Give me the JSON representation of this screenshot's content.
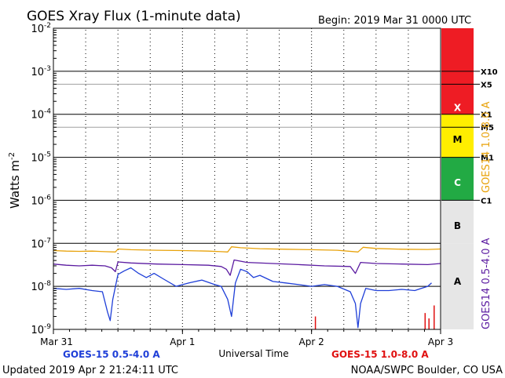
{
  "colors": {
    "background": "#ffffff",
    "axis": "#000000",
    "grid": "#a0a0a0",
    "goes15_short": "#1f3fd8",
    "goes14_short": "#5a1aa0",
    "goes14_long": "#e8a20a",
    "goes15_long": "#e01010",
    "legend_blue": "#1f3fd8",
    "legend_red": "#e01010",
    "label_goes14_long": "#e8a20a",
    "label_goes14_short": "#5a1aa0",
    "band_x": "#ee1c24",
    "band_m": "#ffee00",
    "band_c": "#22aa44",
    "band_low": "#e6e6e6"
  },
  "chart_data": {
    "type": "line",
    "title": "GOES Xray Flux (1-minute data)",
    "begin_label": "Begin:  2019 Mar 31  0000 UTC",
    "ylabel": "Watts m",
    "ylabel_sup": "-2",
    "xlabel": "Universal Time",
    "y_scale": "log",
    "ylim": [
      1e-09,
      0.01
    ],
    "xlim_days": [
      0,
      3
    ],
    "x_ticks": [
      {
        "label": "Mar 31",
        "day": 0
      },
      {
        "label": "Apr 1",
        "day": 1
      },
      {
        "label": "Apr 2",
        "day": 2
      },
      {
        "label": "Apr 3",
        "day": 3
      }
    ],
    "y_ticks": [
      {
        "base": "10",
        "exp": "-2",
        "value": 0.01
      },
      {
        "base": "10",
        "exp": "-3",
        "value": 0.001
      },
      {
        "base": "10",
        "exp": "-4",
        "value": 0.0001
      },
      {
        "base": "10",
        "exp": "-5",
        "value": 1e-05
      },
      {
        "base": "10",
        "exp": "-6",
        "value": 1e-06
      },
      {
        "base": "10",
        "exp": "-7",
        "value": 1e-07
      },
      {
        "base": "10",
        "exp": "-8",
        "value": 1e-08
      },
      {
        "base": "10",
        "exp": "-9",
        "value": 1e-09
      }
    ],
    "flare_levels": [
      {
        "label": "X10",
        "value": 0.001
      },
      {
        "label": "X5",
        "value": 0.0005
      },
      {
        "label": "X1",
        "value": 0.0001
      },
      {
        "label": "M5",
        "value": 5e-05
      },
      {
        "label": "M1",
        "value": 1e-05
      },
      {
        "label": "C1",
        "value": 1e-06
      }
    ],
    "class_bands": [
      {
        "letter": "X",
        "low": 0.0001,
        "high": 0.01,
        "color_key": "band_x"
      },
      {
        "letter": "M",
        "low": 1e-05,
        "high": 0.0001,
        "color_key": "band_m"
      },
      {
        "letter": "C",
        "low": 1e-06,
        "high": 1e-05,
        "color_key": "band_c"
      },
      {
        "letter": "B",
        "low": 1e-07,
        "high": 1e-06,
        "color_key": "band_low"
      },
      {
        "letter": "A",
        "low": 1e-09,
        "high": 1e-07,
        "color_key": "band_low"
      }
    ],
    "series": [
      {
        "name": "GOES14 1.0-8.0 A",
        "color_key": "goes14_long",
        "points": [
          [
            0.0,
            6.8e-08
          ],
          [
            0.1,
            6.6e-08
          ],
          [
            0.2,
            6.5e-08
          ],
          [
            0.3,
            6.6e-08
          ],
          [
            0.4,
            6.4e-08
          ],
          [
            0.48,
            6.3e-08
          ],
          [
            0.5,
            7.4e-08
          ],
          [
            0.6,
            7.1e-08
          ],
          [
            0.8,
            6.9e-08
          ],
          [
            1.0,
            6.8e-08
          ],
          [
            1.2,
            6.6e-08
          ],
          [
            1.3,
            6.4e-08
          ],
          [
            1.35,
            6.3e-08
          ],
          [
            1.38,
            8.3e-08
          ],
          [
            1.45,
            7.9e-08
          ],
          [
            1.6,
            7.5e-08
          ],
          [
            1.8,
            7.3e-08
          ],
          [
            2.0,
            7.1e-08
          ],
          [
            2.2,
            6.9e-08
          ],
          [
            2.36,
            6.3e-08
          ],
          [
            2.4,
            8.1e-08
          ],
          [
            2.5,
            7.6e-08
          ],
          [
            2.7,
            7.3e-08
          ],
          [
            2.9,
            7.2e-08
          ],
          [
            3.0,
            7.4e-08
          ]
        ]
      },
      {
        "name": "GOES14 0.5-4.0 A",
        "color_key": "goes14_short",
        "points": [
          [
            0.0,
            3.3e-08
          ],
          [
            0.1,
            3.1e-08
          ],
          [
            0.2,
            3e-08
          ],
          [
            0.3,
            3.1e-08
          ],
          [
            0.4,
            3e-08
          ],
          [
            0.45,
            2.7e-08
          ],
          [
            0.48,
            2.2e-08
          ],
          [
            0.5,
            3.7e-08
          ],
          [
            0.6,
            3.5e-08
          ],
          [
            0.8,
            3.3e-08
          ],
          [
            1.0,
            3.2e-08
          ],
          [
            1.2,
            3.1e-08
          ],
          [
            1.3,
            2.9e-08
          ],
          [
            1.34,
            2.5e-08
          ],
          [
            1.37,
            1.8e-08
          ],
          [
            1.4,
            4.1e-08
          ],
          [
            1.5,
            3.6e-08
          ],
          [
            1.7,
            3.4e-08
          ],
          [
            1.9,
            3.2e-08
          ],
          [
            2.1,
            3e-08
          ],
          [
            2.3,
            2.9e-08
          ],
          [
            2.34,
            2e-08
          ],
          [
            2.38,
            3.6e-08
          ],
          [
            2.5,
            3.4e-08
          ],
          [
            2.7,
            3.3e-08
          ],
          [
            2.9,
            3.2e-08
          ],
          [
            3.0,
            3.4e-08
          ]
        ]
      },
      {
        "name": "GOES-15 0.5-4.0 A",
        "color_key": "goes15_short",
        "points": [
          [
            0.0,
            9e-09
          ],
          [
            0.1,
            8.5e-09
          ],
          [
            0.2,
            9e-09
          ],
          [
            0.3,
            8e-09
          ],
          [
            0.38,
            7.5e-09
          ],
          [
            0.42,
            2.5e-09
          ],
          [
            0.44,
            1.6e-09
          ],
          [
            0.46,
            5e-09
          ],
          [
            0.5,
            1.9e-08
          ],
          [
            0.55,
            2.3e-08
          ],
          [
            0.6,
            2.7e-08
          ],
          [
            0.66,
            2e-08
          ],
          [
            0.72,
            1.6e-08
          ],
          [
            0.78,
            2e-08
          ],
          [
            0.85,
            1.5e-08
          ],
          [
            0.95,
            1e-08
          ],
          [
            1.05,
            1.2e-08
          ],
          [
            1.15,
            1.4e-08
          ],
          [
            1.25,
            1.1e-08
          ],
          [
            1.3,
            1e-08
          ],
          [
            1.35,
            5e-09
          ],
          [
            1.38,
            2e-09
          ],
          [
            1.41,
            1.2e-08
          ],
          [
            1.45,
            2.5e-08
          ],
          [
            1.5,
            2.2e-08
          ],
          [
            1.55,
            1.6e-08
          ],
          [
            1.6,
            1.8e-08
          ],
          [
            1.7,
            1.3e-08
          ],
          [
            1.8,
            1.2e-08
          ],
          [
            1.9,
            1.1e-08
          ],
          [
            2.0,
            1e-08
          ],
          [
            2.1,
            1.1e-08
          ],
          [
            2.2,
            1e-08
          ],
          [
            2.3,
            7.5e-09
          ],
          [
            2.34,
            4e-09
          ],
          [
            2.36,
            1.1e-09
          ],
          [
            2.38,
            4e-09
          ],
          [
            2.42,
            9e-09
          ],
          [
            2.5,
            8e-09
          ],
          [
            2.6,
            8e-09
          ],
          [
            2.7,
            8.5e-09
          ],
          [
            2.8,
            8e-09
          ],
          [
            2.85,
            9e-09
          ],
          [
            2.9,
            1e-08
          ],
          [
            2.93,
            1.2e-08
          ]
        ]
      },
      {
        "name": "GOES-15 1.0-8.0 A",
        "color_key": "goes15_long",
        "spikes": [
          [
            2.03,
            2e-09
          ],
          [
            2.88,
            2.4e-09
          ],
          [
            2.91,
            1.8e-09
          ],
          [
            2.95,
            3.6e-09
          ]
        ]
      }
    ],
    "legend": [
      {
        "label": "GOES-15 0.5-4.0 A",
        "color_key": "legend_blue",
        "placement": "bottom-left"
      },
      {
        "label": "GOES-15 1.0-8.0 A",
        "color_key": "legend_red",
        "placement": "bottom-right"
      }
    ],
    "right_labels": [
      {
        "label": "GOES14 1.0-8.0 A",
        "color_key": "label_goes14_long"
      },
      {
        "label": "GOES14 0.5-4.0 A",
        "color_key": "label_goes14_short"
      }
    ]
  },
  "footer": {
    "updated": "Updated 2019 Apr  2 21:24:11 UTC",
    "credit": "NOAA/SWPC Boulder, CO USA"
  }
}
